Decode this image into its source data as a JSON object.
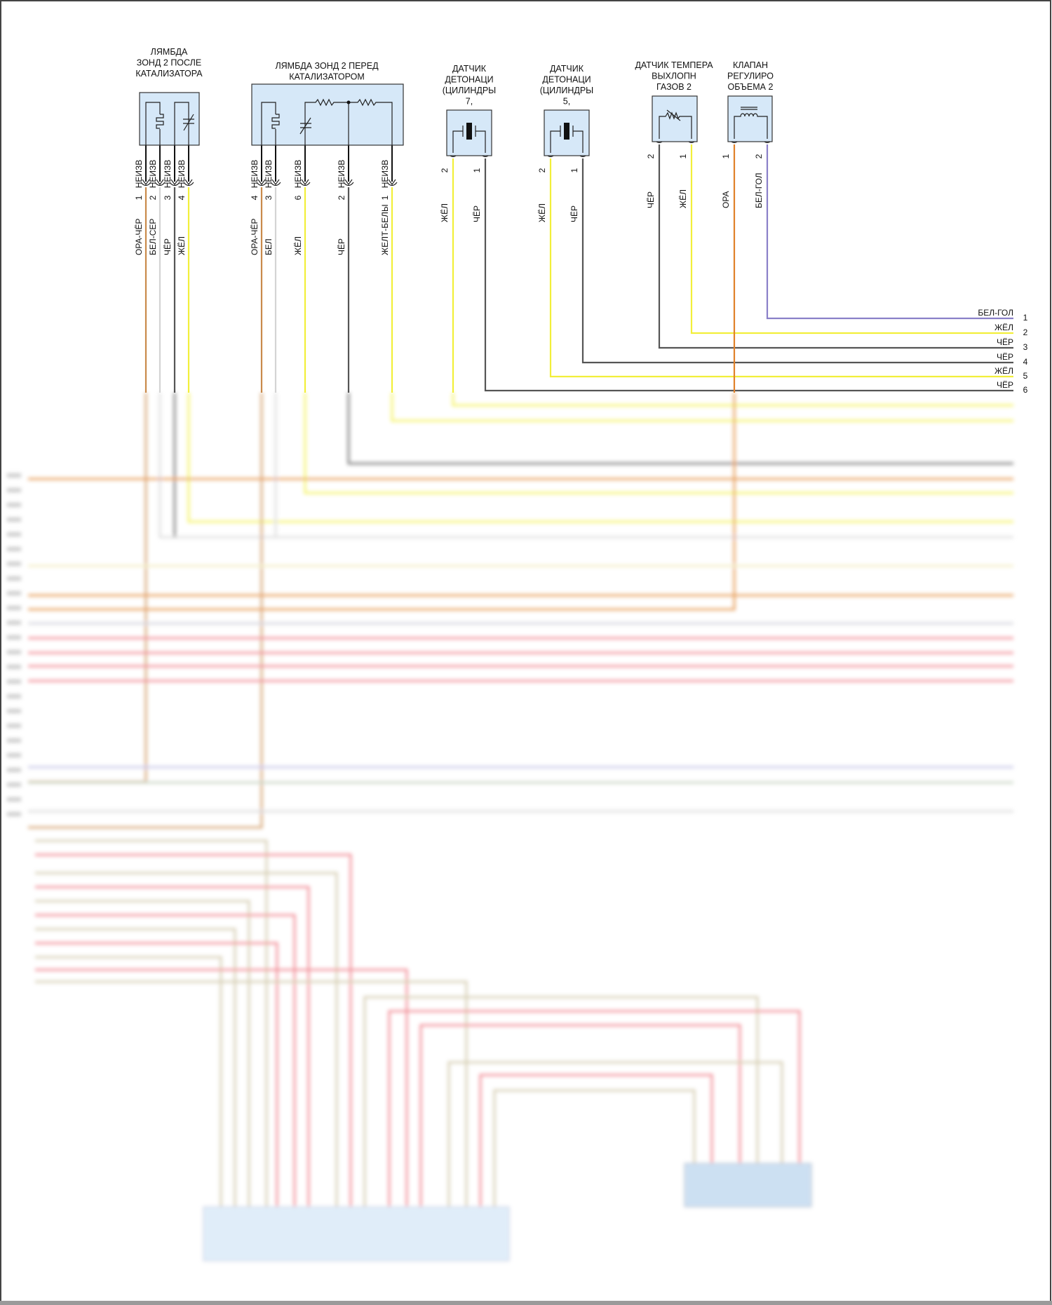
{
  "components": [
    {
      "title": [
        "ЛЯМБДА",
        "ЗОНД 2 ПОСЛЕ",
        "КАТАЛИЗАТОРА"
      ],
      "pins": [
        {
          "conn": "НЕИЗВ",
          "num": "1",
          "wire": "ОРА-ЧЁР"
        },
        {
          "conn": "НЕИЗВ",
          "num": "2",
          "wire": "БЕЛ-СЕР"
        },
        {
          "conn": "НЕИЗВ",
          "num": "3",
          "wire": "ЧЁР"
        },
        {
          "conn": "НЕИЗВ",
          "num": "4",
          "wire": "ЖЁЛ"
        }
      ]
    },
    {
      "title": [
        "ЛЯМБДА ЗОНД 2 ПЕРЕД",
        "КАТАЛИЗАТОРОМ"
      ],
      "pins": [
        {
          "conn": "НЕИЗВ",
          "num": "4",
          "wire": "ОРА-ЧЁР"
        },
        {
          "conn": "НЕИЗВ",
          "num": "3",
          "wire": "БЕЛ"
        },
        {
          "conn": "НЕИЗВ",
          "num": "6",
          "wire": "ЖЁЛ"
        },
        {
          "conn": "НЕИЗВ",
          "num": "2",
          "wire": "ЧЁР"
        },
        {
          "conn": "НЕИЗВ",
          "num": "1",
          "wire": "ЖЕЛТ-БЕЛЫ"
        }
      ]
    },
    {
      "title": [
        "ДАТЧИК",
        "ДЕТОНАЦИ",
        "(ЦИЛИНДРЫ",
        "7,"
      ],
      "pins": [
        {
          "num": "2",
          "wire": "ЖЁЛ"
        },
        {
          "num": "1",
          "wire": "ЧЁР"
        }
      ]
    },
    {
      "title": [
        "ДАТЧИК",
        "ДЕТОНАЦИ",
        "(ЦИЛИНДРЫ",
        "5,"
      ],
      "pins": [
        {
          "num": "2",
          "wire": "ЖЁЛ"
        },
        {
          "num": "1",
          "wire": "ЧЁР"
        }
      ]
    },
    {
      "title": [
        "ДАТЧИК ТЕМПЕРА",
        "ВЫХЛОПН",
        "ГАЗОВ 2"
      ],
      "pins": [
        {
          "num": "2",
          "wire": "ЧЁР"
        },
        {
          "num": "1",
          "wire": "ЖЁЛ"
        }
      ]
    },
    {
      "title": [
        "КЛАПАН",
        "РЕГУЛИРО",
        "ОБЪЕМА 2"
      ],
      "pins": [
        {
          "num": "1",
          "wire": "ОРА"
        },
        {
          "num": "2",
          "wire": "БЕЛ-ГОЛ"
        }
      ]
    }
  ],
  "right_connector": [
    {
      "num": "1",
      "wire": "БЕЛ-ГОЛ"
    },
    {
      "num": "2",
      "wire": "ЖЁЛ"
    },
    {
      "num": "3",
      "wire": "ЧЁР"
    },
    {
      "num": "4",
      "wire": "ЧЁР"
    },
    {
      "num": "5",
      "wire": "ЖЁЛ"
    },
    {
      "num": "6",
      "wire": "ЧЁР"
    }
  ],
  "colors": {
    "ora_cher": "#c98a4b",
    "bel_ser": "#d4d4d4",
    "cher": "#555555",
    "zhel": "#f2ef3a",
    "ora": "#e0812a",
    "bel_gol": "#8a80c8",
    "box_fill": "#d6e8f8",
    "red": "#ee6e7a",
    "tan": "#c9bf9c"
  }
}
